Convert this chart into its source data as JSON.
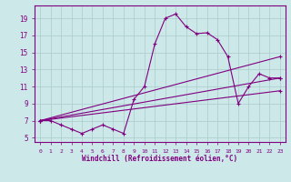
{
  "xlabel": "Windchill (Refroidissement éolien,°C)",
  "bg_color": "#cce8e8",
  "line_color": "#800080",
  "grid_color": "#aacccc",
  "xlim": [
    -0.5,
    23.5
  ],
  "ylim": [
    4.5,
    20.5
  ],
  "xticks": [
    0,
    1,
    2,
    3,
    4,
    5,
    6,
    7,
    8,
    9,
    10,
    11,
    12,
    13,
    14,
    15,
    16,
    17,
    18,
    19,
    20,
    21,
    22,
    23
  ],
  "yticks": [
    5,
    7,
    9,
    11,
    13,
    15,
    17,
    19
  ],
  "series1_x": [
    0,
    1,
    2,
    3,
    4,
    5,
    6,
    7,
    8,
    9,
    10,
    11,
    12,
    13,
    14,
    15,
    16,
    17,
    18,
    19,
    20,
    21,
    22,
    23
  ],
  "series1_y": [
    7.0,
    7.0,
    6.5,
    6.0,
    5.5,
    6.0,
    6.5,
    6.0,
    5.5,
    9.5,
    11.0,
    16.0,
    19.0,
    19.5,
    18.0,
    17.2,
    17.3,
    16.5,
    14.5,
    9.0,
    11.0,
    12.5,
    12.0,
    12.0
  ],
  "series2_x": [
    0,
    23
  ],
  "series2_y": [
    7.0,
    14.5
  ],
  "series3_x": [
    0,
    23
  ],
  "series3_y": [
    7.0,
    12.0
  ],
  "series4_x": [
    0,
    23
  ],
  "series4_y": [
    7.0,
    10.5
  ]
}
